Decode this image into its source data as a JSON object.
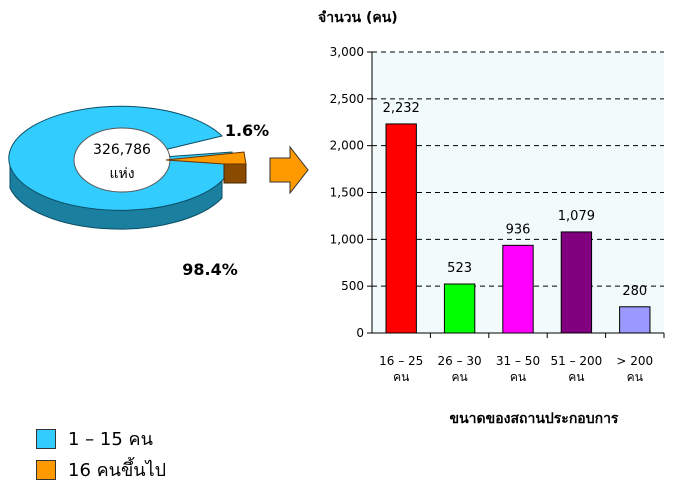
{
  "pie": {
    "center_value": "326,786",
    "center_unit": "แห่ง",
    "slice_large_pct": "98.4%",
    "slice_small_pct": "1.6%",
    "colors": {
      "large": "#33ccff",
      "large_side": "#1b7fa0",
      "small": "#ff9900",
      "small_side": "#8a4a00"
    }
  },
  "legend": [
    {
      "label": "1 – 15 คน",
      "color": "#33ccff"
    },
    {
      "label": "16 คนขึ้นไป",
      "color": "#ff9900"
    }
  ],
  "arrow_color": "#ff9900",
  "chart_data": {
    "type": "bar",
    "ylabel": "จำนวน (คน)",
    "xlabel": "ขนาดของสถานประกอบการ",
    "ylim": [
      0,
      3000
    ],
    "yticks": [
      "0",
      "500",
      "1,000",
      "1,500",
      "2,000",
      "2,500",
      "3,000"
    ],
    "ytick_values": [
      0,
      500,
      1000,
      1500,
      2000,
      2500,
      3000
    ],
    "grid": true,
    "plot_background": "#f2fbfb",
    "categories": [
      [
        "16 – 25",
        "คน"
      ],
      [
        "26 – 30",
        "คน"
      ],
      [
        "31 – 50",
        "คน"
      ],
      [
        "51 – 200",
        "คน"
      ],
      [
        "> 200",
        "คน"
      ]
    ],
    "values": [
      2232,
      523,
      936,
      1079,
      280
    ],
    "value_labels": [
      "2,232",
      "523",
      "936",
      "1,079",
      "280"
    ],
    "colors": [
      "#ff0000",
      "#00ff00",
      "#ff00ff",
      "#800080",
      "#9999ff"
    ]
  }
}
